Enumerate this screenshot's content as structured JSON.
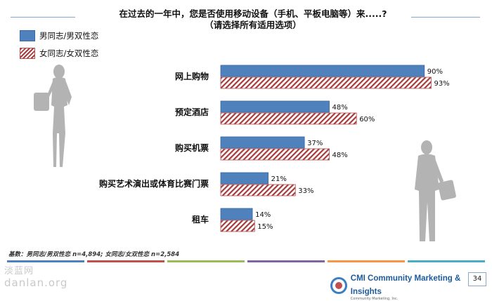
{
  "title_line1": "在过去的一年中，您是否使用移动设备（手机、平板电脑等）来.....?",
  "title_line2": "（请选择所有适用选项）",
  "legend": [
    {
      "label": "男同志/男双性恋",
      "pattern": "solid",
      "color": "#4f81bd"
    },
    {
      "label": "女同志/女双性恋",
      "pattern": "hatched",
      "color": "#a83b3b"
    }
  ],
  "footnote": "基数：男同志/男双性恋 n=4,894; 女同志/女双性恋 n=2,584",
  "brand": {
    "name": "CMI Community Marketing & Insights",
    "sub": "Community Marketing, Inc."
  },
  "page_number": "34",
  "watermark": {
    "cn": "淡蓝网",
    "en": "danlan.org"
  },
  "strip_colors": [
    "#4f81bd",
    "#c0504d",
    "#9bbb59",
    "#8064a2",
    "#f79646",
    "#4bacc6"
  ],
  "chart_data": {
    "type": "bar",
    "orientation": "horizontal",
    "categories": [
      "网上购物",
      "预定酒店",
      "购买机票",
      "购买艺术演出或体育比赛门票",
      "租车"
    ],
    "series": [
      {
        "name": "男同志/男双性恋",
        "values": [
          90,
          48,
          37,
          21,
          14
        ],
        "color": "#4f81bd",
        "pattern": "solid"
      },
      {
        "name": "女同志/女双性恋",
        "values": [
          93,
          60,
          48,
          33,
          15
        ],
        "color": "#a83b3b",
        "pattern": "hatched"
      }
    ],
    "value_format": "percent",
    "xlim": [
      0,
      100
    ],
    "grid": false,
    "legend_position": "top-left"
  }
}
